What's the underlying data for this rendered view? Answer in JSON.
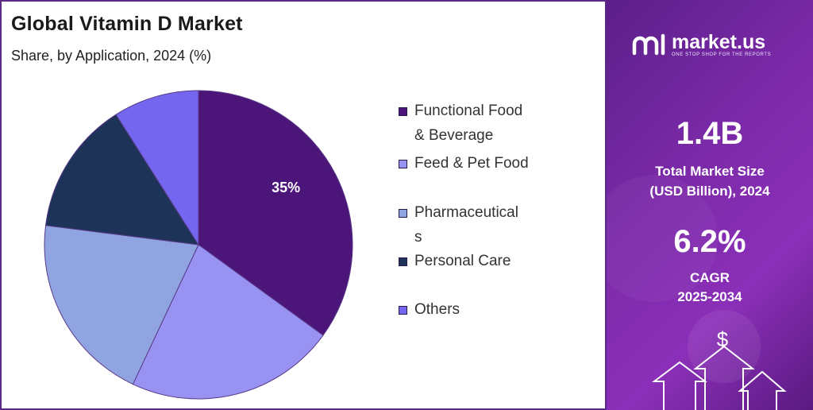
{
  "title": "Global Vitamin D Market",
  "subtitle": "Share, by Application, 2024 (%)",
  "chart_data": {
    "type": "pie",
    "categories": [
      "Functional Food & Beverage",
      "Feed & Pet Food",
      "Pharmaceuticals",
      "Personal Care",
      "Others"
    ],
    "values": [
      35,
      22,
      20,
      14,
      9
    ],
    "data_labels": [
      "35%",
      "",
      "",
      "",
      ""
    ],
    "colors": [
      "#4b157a",
      "#9893f2",
      "#8fa4e0",
      "#1e3358",
      "#7566f0"
    ],
    "legend_placement": "right"
  },
  "legend": [
    {
      "line1": "Functional Food",
      "line2": "& Beverage"
    },
    {
      "line1": "Feed & Pet Food",
      "line2": ""
    },
    {
      "line1": "Pharmaceutical",
      "line2": "s"
    },
    {
      "line1": "Personal Care",
      "line2": ""
    },
    {
      "line1": "Others",
      "line2": ""
    }
  ],
  "brand": {
    "name": "market.us",
    "tagline": "ONE STOP SHOP FOR THE REPORTS"
  },
  "stats": {
    "market_size": "1.4B",
    "market_size_label_1": "Total Market Size",
    "market_size_label_2": "(USD Billion), 2024",
    "cagr": "6.2%",
    "cagr_label_1": "CAGR",
    "cagr_label_2": "2025-2034"
  },
  "decor": {
    "dollar_symbol": "$"
  }
}
